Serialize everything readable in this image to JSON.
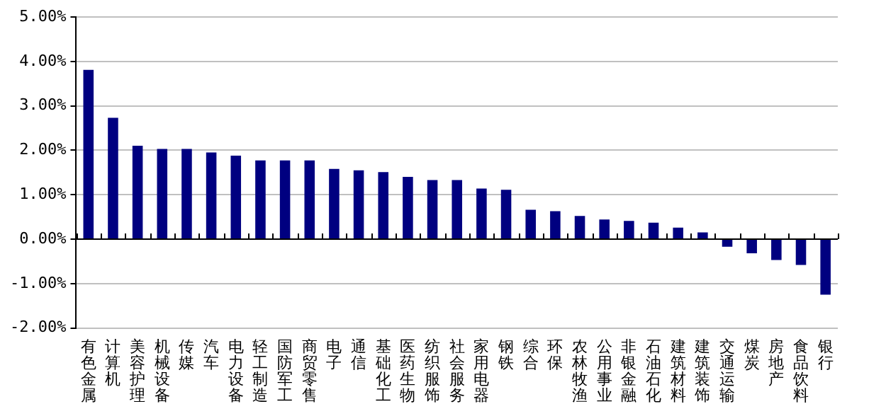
{
  "chart_data": {
    "type": "bar",
    "categories": [
      "有色金属",
      "计算机",
      "美容护理",
      "机械设备",
      "传媒",
      "汽车",
      "电力设备",
      "轻工制造",
      "国防军工",
      "商贸零售",
      "电子",
      "通信",
      "基础化工",
      "医药生物",
      "纺织服饰",
      "社会服务",
      "家用电器",
      "钢铁",
      "综合",
      "环保",
      "农林牧渔",
      "公用事业",
      "非银金融",
      "石油石化",
      "建筑材料",
      "建筑装饰",
      "交通运输",
      "煤炭",
      "房地产",
      "食品饮料",
      "银行"
    ],
    "values": [
      3.81,
      2.73,
      2.1,
      2.03,
      2.03,
      1.95,
      1.88,
      1.77,
      1.77,
      1.77,
      1.58,
      1.55,
      1.51,
      1.4,
      1.33,
      1.33,
      1.14,
      1.11,
      0.66,
      0.63,
      0.52,
      0.44,
      0.41,
      0.37,
      0.26,
      0.15,
      -0.17,
      -0.32,
      -0.47,
      -0.58,
      -1.25
    ],
    "color": "#000080",
    "ylim": [
      -2,
      5
    ],
    "yticks": [
      {
        "value": -2,
        "label": "-2.00%"
      },
      {
        "value": -1,
        "label": "-1.00%"
      },
      {
        "value": 0,
        "label": "0.00%"
      },
      {
        "value": 1,
        "label": "1.00%"
      },
      {
        "value": 2,
        "label": "2.00%"
      },
      {
        "value": 3,
        "label": "3.00%"
      },
      {
        "value": 4,
        "label": "4.00%"
      },
      {
        "value": 5,
        "label": "5.00%"
      }
    ],
    "grid": "y"
  }
}
